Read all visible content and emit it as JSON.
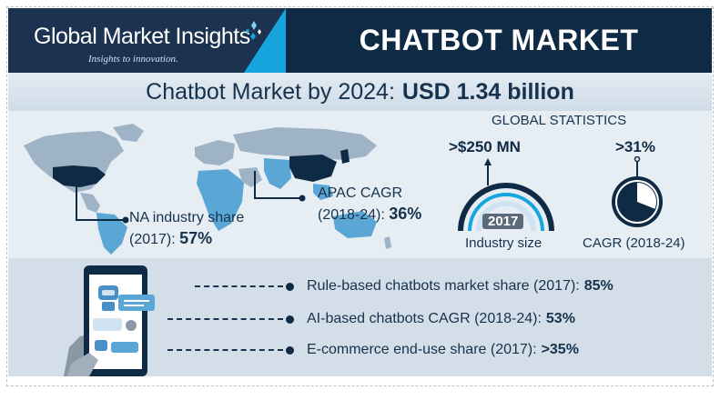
{
  "header": {
    "brand_name": "Global Market Insights",
    "brand_tagline": "Insights to innovation.",
    "title": "CHATBOT MARKET"
  },
  "subtitle": {
    "text": "Chatbot Market by 2024:",
    "value": "USD 1.34 billion"
  },
  "map_callouts": {
    "na": {
      "line1": "NA industry share",
      "line2": "(2017):",
      "value": "57%"
    },
    "apac": {
      "line1": "APAC CAGR",
      "line2": "(2018-24):",
      "value": "36%"
    }
  },
  "global_statistics": {
    "title": "GLOBAL STATISTICS",
    "industry_size": {
      "value": ">$250 MN",
      "year": "2017",
      "label": "Industry size"
    },
    "cagr": {
      "value": ">31%",
      "label": "CAGR (2018-24)",
      "fill_fraction": 0.31
    }
  },
  "bullets": [
    {
      "label": "Rule-based chatbots market share (2017):",
      "value": "85%"
    },
    {
      "label": "AI-based chatbots CAGR (2018-24):",
      "value": "53%"
    },
    {
      "label": "E-commerce end-use share (2017):",
      "value": ">35%"
    }
  ],
  "colors": {
    "navy": "#0f2a44",
    "accent_blue": "#16a6dd",
    "map_land": "#9fb3c6",
    "map_highlight": "#0f2a44",
    "map_light_blue": "#5aa6d4"
  },
  "icons": [
    "globe-sparkle-icon",
    "world-map",
    "gauge-icon",
    "pie-icon",
    "smartphone-chat-icon",
    "robot-icon",
    "user-icon"
  ]
}
